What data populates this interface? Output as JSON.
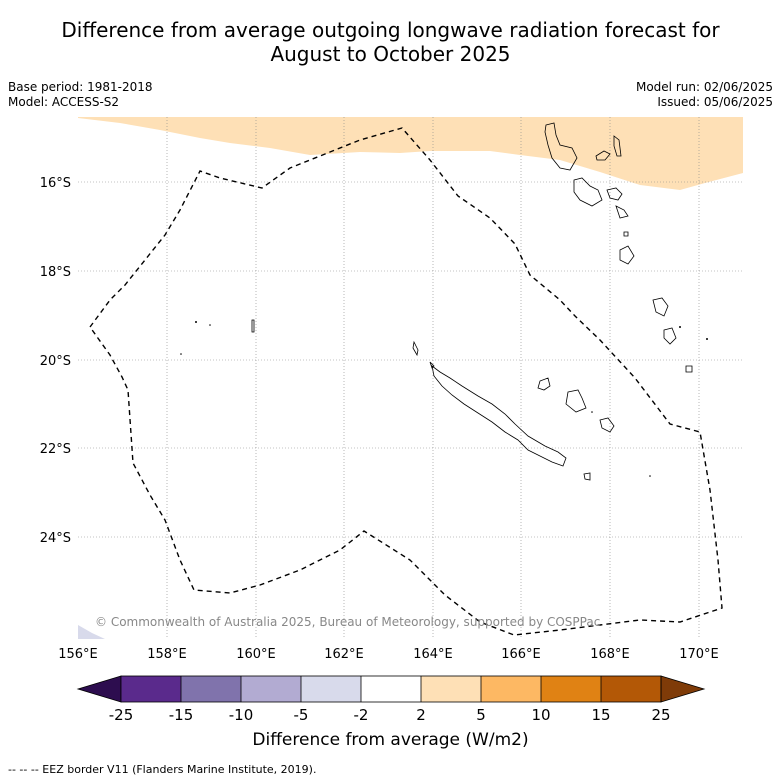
{
  "title_line1": "Difference from average outgoing longwave radiation forecast for",
  "title_line2": "August to October 2025",
  "base_period": "Base period: 1981-2018",
  "model": "Model: ACCESS-S2",
  "model_run": "Model run: 02/06/2025",
  "issued": "Issued: 05/06/2025",
  "copyright": "© Commonwealth of Australia 2025, Bureau of Meteorology, supported by COSPPac",
  "lon_ticks": [
    "156°E",
    "158°E",
    "160°E",
    "162°E",
    "164°E",
    "166°E",
    "168°E",
    "170°E"
  ],
  "lat_ticks": [
    "16°S",
    "18°S",
    "20°S",
    "22°S",
    "24°S"
  ],
  "colorbar": {
    "label": "Difference from average (W/m2)",
    "ticks": [
      "-25",
      "-15",
      "-10",
      "-5",
      "-2",
      "2",
      "5",
      "10",
      "15",
      "25"
    ],
    "colors": [
      "#2d0d4f",
      "#5a2a8c",
      "#8073ac",
      "#b2abd2",
      "#d8daeb",
      "#ffffff",
      "#fee0b6",
      "#fdb863",
      "#e08214",
      "#b35806",
      "#7f3b08"
    ]
  },
  "legend_note": "-- -- -- EEZ border V11 (Flanders Marine Institute, 2019)."
}
